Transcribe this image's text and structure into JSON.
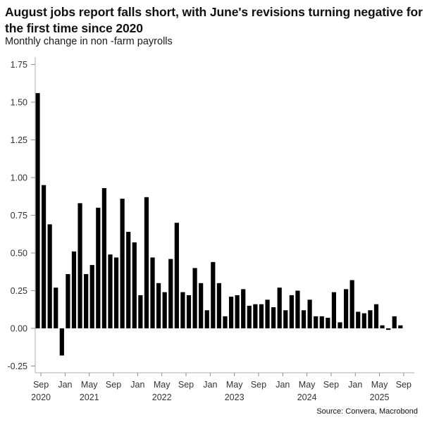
{
  "header": {
    "title": "August jobs report falls short, with June's revisions turning negative for the first time since 2020",
    "subtitle": "Monthly change in non -farm payrolls"
  },
  "footer": {
    "source": "Source: Convera, Macrobond"
  },
  "colors": {
    "bar": "#000000",
    "axis": "#bfbfbf",
    "text": "#333333"
  },
  "chart_data": {
    "type": "bar",
    "title": "August jobs report falls short, with June's revisions turning negative for the first time since 2020",
    "subtitle": "Monthly change in non -farm payrolls",
    "xlabel": "",
    "ylabel": "",
    "units": "millions",
    "ylim": [
      -0.3,
      1.8
    ],
    "yticks": [
      "1.75",
      "1.50",
      "1.25",
      "1.00",
      "0.75",
      "0.50",
      "0.25",
      "0.00",
      "-0.25"
    ],
    "ytick_values": [
      1.75,
      1.5,
      1.25,
      1.0,
      0.75,
      0.5,
      0.25,
      0.0,
      -0.25
    ],
    "xtick_months": [
      "Sep",
      "Jan",
      "May",
      "Sep",
      "Jan",
      "May",
      "Sep",
      "Jan",
      "May",
      "Sep",
      "Jan",
      "May",
      "Sep",
      "Jan",
      "May",
      "Sep"
    ],
    "xtick_years": [
      {
        "label": "2020",
        "month_index": 1
      },
      {
        "label": "2021",
        "month_index": 9
      },
      {
        "label": "2022",
        "month_index": 21
      },
      {
        "label": "2023",
        "month_index": 33
      },
      {
        "label": "2024",
        "month_index": 45
      },
      {
        "label": "2025",
        "month_index": 57
      }
    ],
    "grid": false,
    "legend": null,
    "source": "Source: Convera, Macrobond",
    "categories": [
      "2020-08",
      "2020-09",
      "2020-10",
      "2020-11",
      "2020-12",
      "2021-01",
      "2021-02",
      "2021-03",
      "2021-04",
      "2021-05",
      "2021-06",
      "2021-07",
      "2021-08",
      "2021-09",
      "2021-10",
      "2021-11",
      "2021-12",
      "2022-01",
      "2022-02",
      "2022-03",
      "2022-04",
      "2022-05",
      "2022-06",
      "2022-07",
      "2022-08",
      "2022-09",
      "2022-10",
      "2022-11",
      "2022-12",
      "2023-01",
      "2023-02",
      "2023-03",
      "2023-04",
      "2023-05",
      "2023-06",
      "2023-07",
      "2023-08",
      "2023-09",
      "2023-10",
      "2023-11",
      "2023-12",
      "2024-01",
      "2024-02",
      "2024-03",
      "2024-04",
      "2024-05",
      "2024-06",
      "2024-07",
      "2024-08",
      "2024-09",
      "2024-10",
      "2024-11",
      "2024-12",
      "2025-01",
      "2025-02",
      "2025-03",
      "2025-04",
      "2025-05",
      "2025-06",
      "2025-07",
      "2025-08"
    ],
    "values": [
      1.56,
      0.95,
      0.69,
      0.27,
      -0.18,
      0.36,
      0.51,
      0.83,
      0.36,
      0.42,
      0.8,
      0.93,
      0.49,
      0.47,
      0.86,
      0.64,
      0.57,
      0.22,
      0.87,
      0.47,
      0.3,
      0.24,
      0.46,
      0.7,
      0.24,
      0.22,
      0.4,
      0.3,
      0.12,
      0.44,
      0.3,
      0.08,
      0.21,
      0.22,
      0.26,
      0.15,
      0.16,
      0.16,
      0.19,
      0.14,
      0.27,
      0.12,
      0.22,
      0.25,
      0.12,
      0.19,
      0.08,
      0.08,
      0.07,
      0.24,
      0.04,
      0.26,
      0.32,
      0.11,
      0.1,
      0.12,
      0.16,
      0.02,
      -0.01,
      0.08,
      0.02
    ]
  }
}
